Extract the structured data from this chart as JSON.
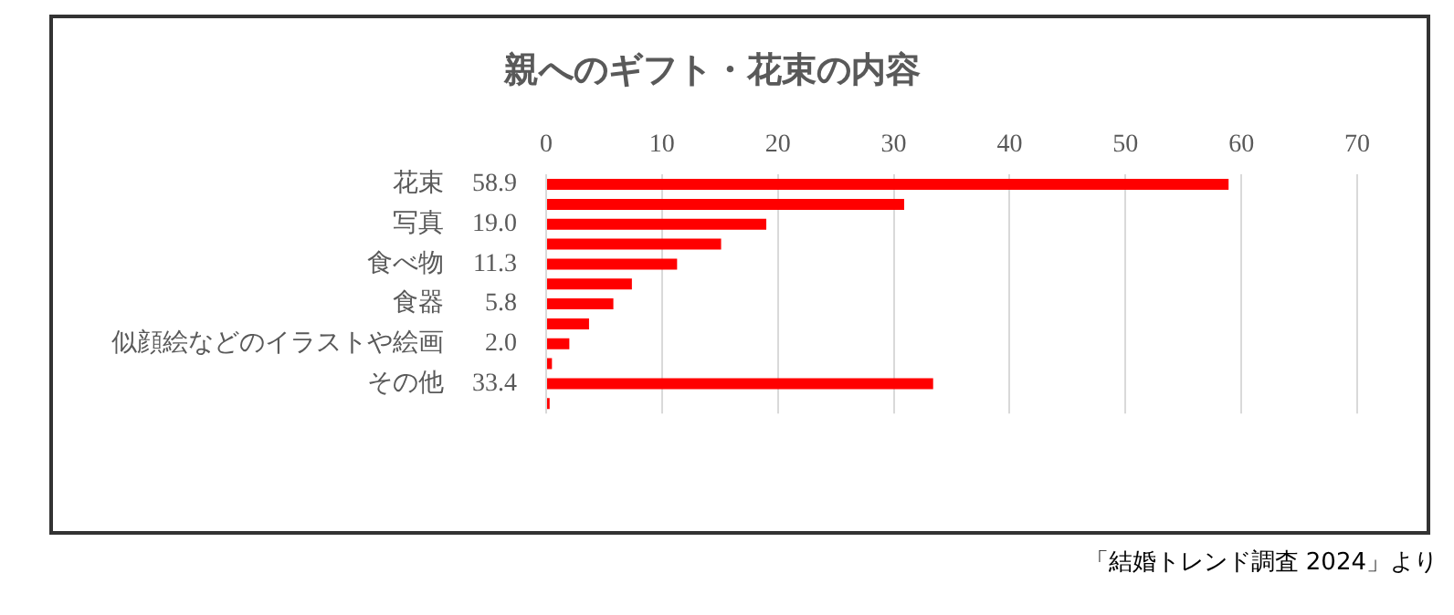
{
  "chart_data": {
    "type": "bar",
    "orientation": "horizontal",
    "title": "親へのギフト・花束の内容",
    "categories": [
      "花束",
      null,
      "写真",
      null,
      "食べ物",
      null,
      "食器",
      null,
      "似顔絵などのイラストや絵画",
      null,
      "その他",
      null
    ],
    "values": [
      58.9,
      30.9,
      19.0,
      15.1,
      11.3,
      7.4,
      5.8,
      3.7,
      2.0,
      0.5,
      33.4,
      0.3
    ],
    "value_labels": [
      "58.9",
      null,
      "19.0",
      null,
      "11.3",
      null,
      "5.8",
      null,
      "2.0",
      null,
      "33.4",
      null
    ],
    "color": "#ff0000",
    "xlim": [
      0,
      70
    ],
    "xticks": [
      0,
      10,
      20,
      30,
      40,
      50,
      60,
      70
    ],
    "grid": "x",
    "annotations": [
      "「結婚トレンド調査 2024」より"
    ]
  }
}
